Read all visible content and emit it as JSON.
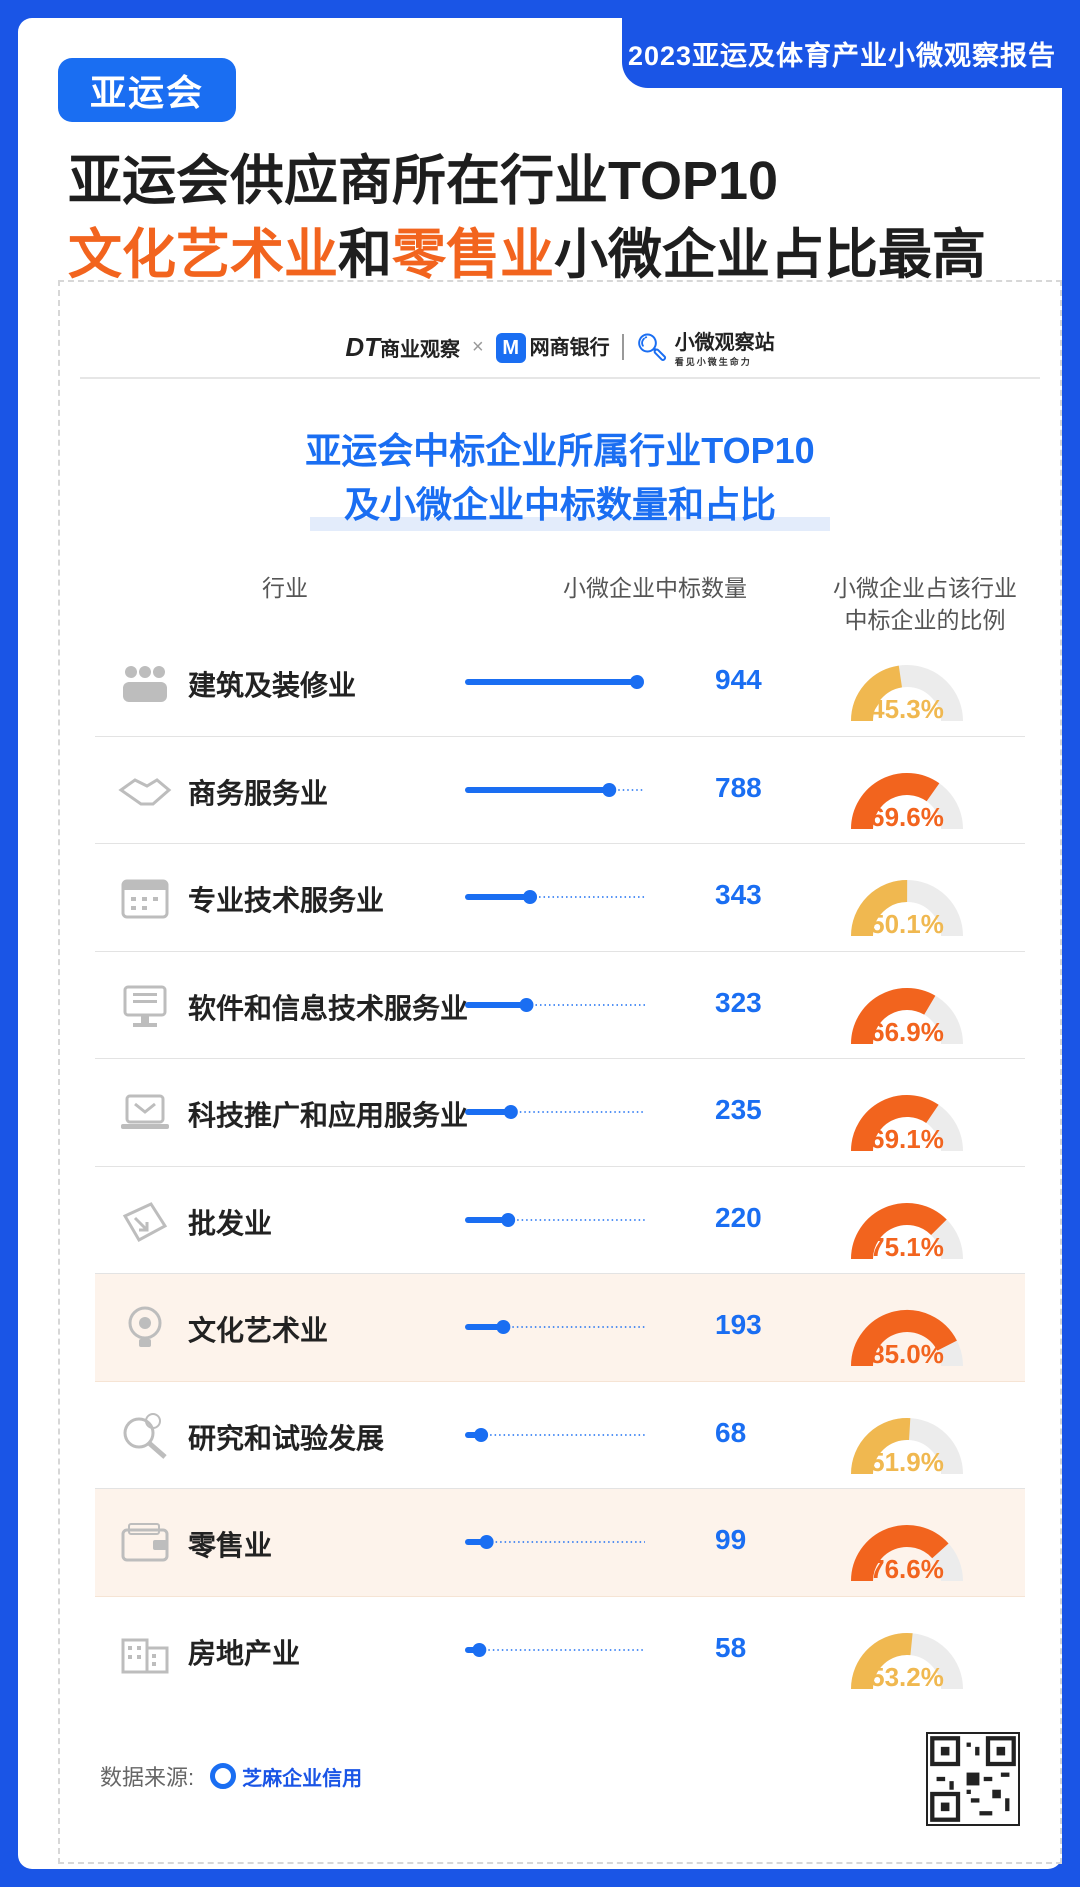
{
  "report_tab": "2023亚运及体育产业小微观察报告",
  "tag": "亚运会",
  "headline": {
    "line1": "亚运会供应商所在行业TOP10",
    "line2_orange_a": "文化艺术业",
    "line2_and": "和",
    "line2_orange_b": "零售业",
    "line2_rest": "小微企业占比最高"
  },
  "logos": {
    "dt": "DT",
    "dt_text": "商业观察",
    "x": "×",
    "mybank_m": "M",
    "mybank": "网商银行",
    "station": "小微观察站",
    "station_sub": "看见小微生命力"
  },
  "chart_data": {
    "type": "bar",
    "title": "亚运会中标企业所属行业TOP10",
    "subtitle": "及小微企业中标数量和占比",
    "columns": {
      "industry": "行业",
      "count": "小微企业中标数量",
      "share_l1": "小微企业占该行业",
      "share_l2": "中标企业的比例"
    },
    "xlim": [
      0,
      944
    ],
    "categories": [
      "建筑及装修业",
      "商务服务业",
      "专业技术服务业",
      "软件和信息技术服务业",
      "科技推广和应用服务业",
      "批发业",
      "文化艺术业",
      "研究和试验发展",
      "零售业",
      "房地产业"
    ],
    "series": [
      {
        "values": [
          944,
          788,
          343,
          323,
          235,
          220,
          193,
          68,
          99,
          58
        ]
      },
      {
        "values": [
          45.3,
          69.6,
          50.1,
          66.9,
          69.1,
          75.1,
          85.0,
          51.9,
          76.6,
          53.2
        ]
      }
    ],
    "count_labels": [
      "944",
      "788",
      "343",
      "323",
      "235",
      "220",
      "193",
      "68",
      "99",
      "58"
    ],
    "share_labels": [
      "45.3%",
      "69.6%",
      "50.1%",
      "66.9%",
      "69.1%",
      "75.1%",
      "85.0%",
      "51.9%",
      "76.6%",
      "53.2%"
    ],
    "highlighted": [
      6,
      8
    ],
    "icons": [
      "workers-icon",
      "handshake-icon",
      "calendar-icon",
      "computer-icon",
      "laptop-mail-icon",
      "shopping-bag-icon",
      "lightbulb-gear-icon",
      "magnifier-globe-icon",
      "wallet-icon",
      "buildings-icon"
    ]
  },
  "colors": {
    "brand_blue": "#1a6ef2",
    "frame_blue": "#1a55e6",
    "orange": "#f2641e",
    "gold": "#f0b850",
    "track": "#ececec"
  },
  "source": {
    "label": "数据来源:",
    "org": "芝麻企业信用"
  }
}
